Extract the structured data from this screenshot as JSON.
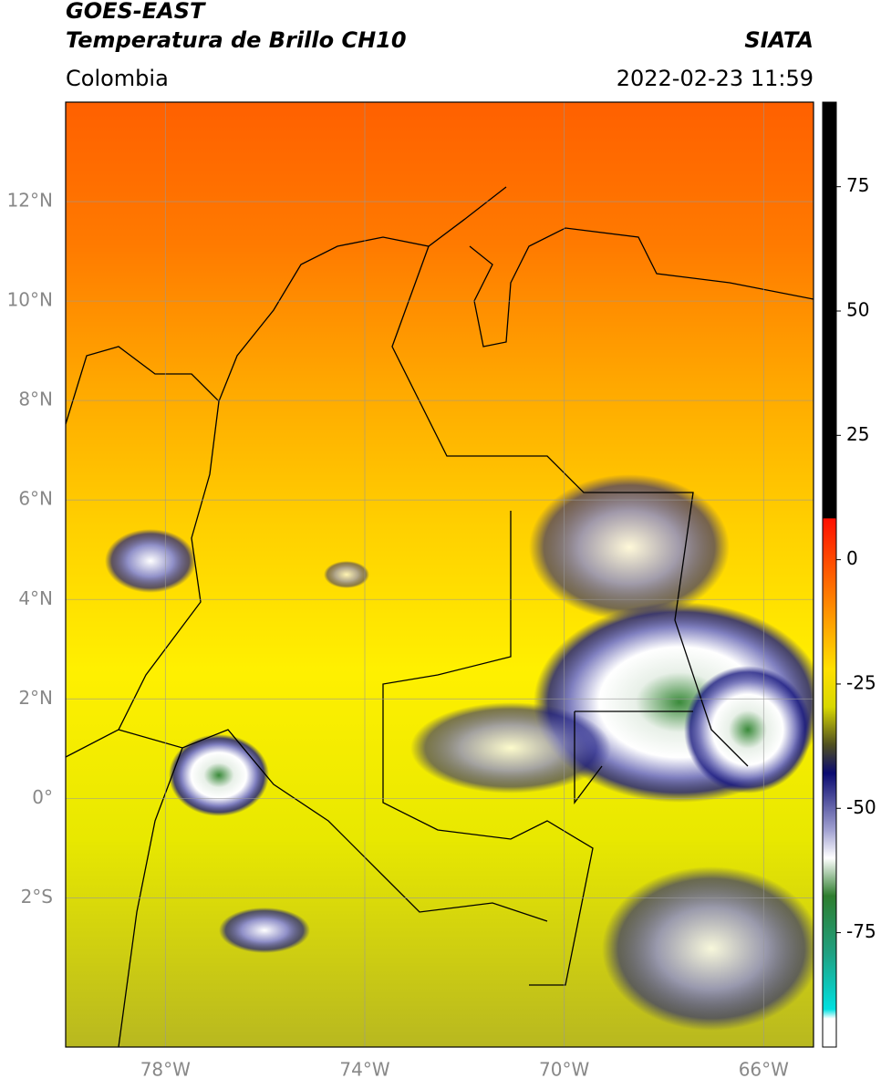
{
  "header": {
    "satellite": "GOES-EAST",
    "product": "Temperatura de Brillo CH10",
    "region": "Colombia",
    "source": "SIATA",
    "datetime": "2022-02-23 11:59"
  },
  "map": {
    "lonlim": [
      -80,
      -65
    ],
    "latlim": [
      -5,
      14
    ],
    "lonticks": [
      {
        "value": -78,
        "label": "78°W"
      },
      {
        "value": -74,
        "label": "74°W"
      },
      {
        "value": -70,
        "label": "70°W"
      },
      {
        "value": -66,
        "label": "66°W"
      }
    ],
    "latticks": [
      {
        "value": 12,
        "label": "12°N"
      },
      {
        "value": 10,
        "label": "10°N"
      },
      {
        "value": 8,
        "label": "8°N"
      },
      {
        "value": 6,
        "label": "6°N"
      },
      {
        "value": 4,
        "label": "4°N"
      },
      {
        "value": 2,
        "label": "2°N"
      },
      {
        "value": 0,
        "label": "0°"
      },
      {
        "value": -2,
        "label": "2°S"
      }
    ],
    "grid": true
  },
  "colorbar": {
    "lim": [
      -98,
      92
    ],
    "ticks": [
      75,
      50,
      25,
      0,
      -25,
      -50,
      -75
    ]
  }
}
